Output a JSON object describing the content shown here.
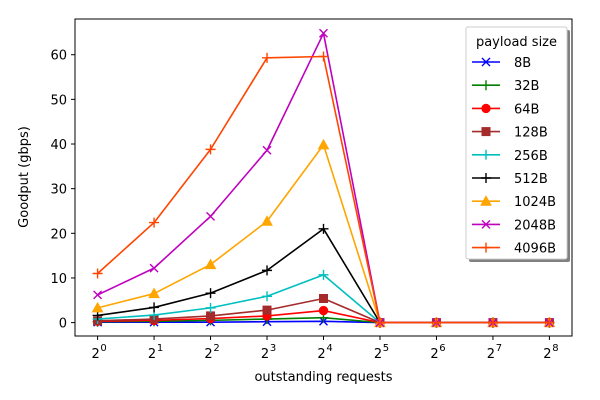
{
  "chart_data": {
    "type": "line",
    "title": "",
    "xlabel": "outstanding requests",
    "ylabel": "Goodput (gbps)",
    "x_scale": "log2",
    "x": [
      1,
      2,
      4,
      8,
      16,
      32,
      64,
      128,
      256
    ],
    "x_tick_labels": [
      {
        "base": "2",
        "exp": "0"
      },
      {
        "base": "2",
        "exp": "1"
      },
      {
        "base": "2",
        "exp": "2"
      },
      {
        "base": "2",
        "exp": "3"
      },
      {
        "base": "2",
        "exp": "4"
      },
      {
        "base": "2",
        "exp": "5"
      },
      {
        "base": "2",
        "exp": "6"
      },
      {
        "base": "2",
        "exp": "7"
      },
      {
        "base": "2",
        "exp": "8"
      }
    ],
    "ylim": [
      -3,
      68
    ],
    "y_ticks": [
      0,
      10,
      20,
      30,
      40,
      50,
      60
    ],
    "grid": false,
    "legend": {
      "title": "payload size",
      "position": "top-right"
    },
    "series": [
      {
        "name": "8B",
        "color": "#0000ff",
        "marker": "x",
        "values": [
          0.1,
          0.1,
          0.1,
          0.2,
          0.3,
          0,
          0,
          0,
          0
        ]
      },
      {
        "name": "32B",
        "color": "#008000",
        "marker": "plus",
        "values": [
          0.2,
          0.3,
          0.5,
          0.8,
          1.1,
          0,
          0,
          0,
          0
        ]
      },
      {
        "name": "64B",
        "color": "#ff0000",
        "marker": "circle",
        "values": [
          0.3,
          0.5,
          0.9,
          1.5,
          2.7,
          0,
          0,
          0,
          0
        ]
      },
      {
        "name": "128B",
        "color": "#a52a2a",
        "marker": "square",
        "values": [
          0.4,
          0.8,
          1.5,
          2.8,
          5.4,
          0,
          0,
          0,
          0
        ]
      },
      {
        "name": "256B",
        "color": "#00bfbf",
        "marker": "plus",
        "values": [
          0.8,
          1.7,
          3.3,
          5.9,
          10.7,
          0,
          0,
          0,
          0
        ]
      },
      {
        "name": "512B",
        "color": "#000000",
        "marker": "plus",
        "values": [
          1.6,
          3.4,
          6.6,
          11.7,
          21.0,
          0,
          0,
          0,
          0
        ]
      },
      {
        "name": "1024B",
        "color": "#ffa500",
        "marker": "triangle",
        "values": [
          3.3,
          6.5,
          13.0,
          22.7,
          39.8,
          0,
          0,
          0,
          0
        ]
      },
      {
        "name": "2048B",
        "color": "#bf00bf",
        "marker": "x",
        "values": [
          6.2,
          12.2,
          23.8,
          38.6,
          64.8,
          0,
          0,
          0,
          0
        ]
      },
      {
        "name": "4096B",
        "color": "#ff4500",
        "marker": "plus",
        "values": [
          11.0,
          22.4,
          38.8,
          59.3,
          59.6,
          0,
          0,
          0,
          0
        ]
      }
    ]
  }
}
